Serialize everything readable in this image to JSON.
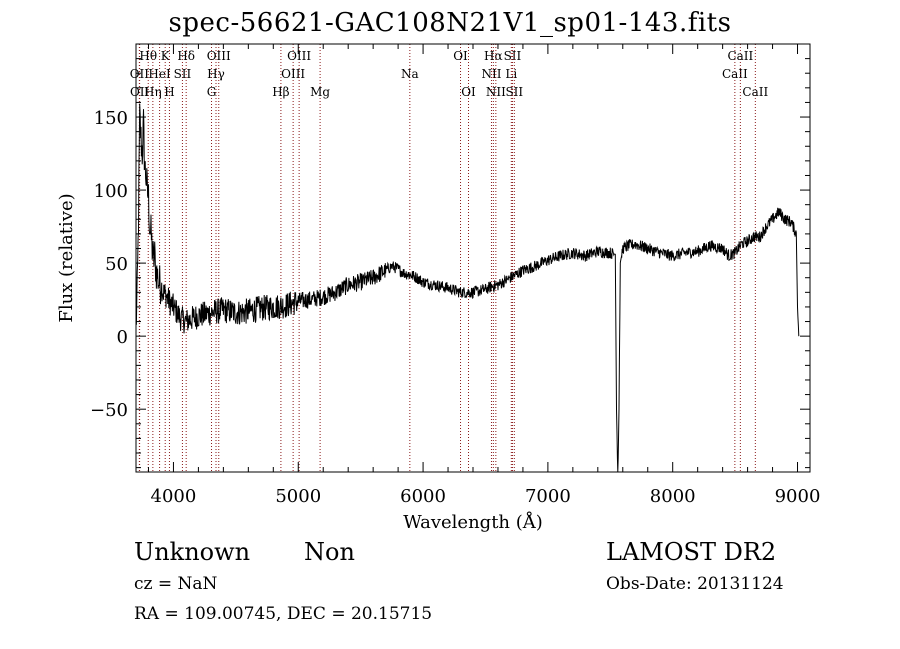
{
  "header": {
    "title": "spec-56621-GAC108N21V1_sp01-143.fits"
  },
  "info": {
    "object_class": "Unknown",
    "object_subclass": "Non",
    "survey": "LAMOST DR2",
    "cz": "cz = NaN",
    "obs_date": "Obs-Date: 20131124",
    "radec": "RA = 109.00745, DEC =  20.15715"
  },
  "chart_data": {
    "type": "line",
    "title": "spec-56621-GAC108N21V1_sp01-143.fits",
    "xlabel": "Wavelength (Å)",
    "ylabel": "Flux (relative)",
    "xlim": [
      3700,
      9100
    ],
    "ylim": [
      -93,
      200
    ],
    "xticks": [
      4000,
      5000,
      6000,
      7000,
      8000,
      9000
    ],
    "yticks": [
      -50,
      0,
      50,
      100,
      150
    ],
    "grid": false,
    "line_color": "#000000",
    "marker_color": "#8b1a1a",
    "series": [
      {
        "x": [
          3700,
          3710,
          3720,
          3730,
          3740,
          3750,
          3760,
          3770,
          3780,
          3790,
          3800,
          3810,
          3820,
          3830,
          3840,
          3850,
          3860,
          3870,
          3880,
          3890,
          3900,
          3920,
          3940,
          3960,
          3980,
          4000,
          4030,
          4060,
          4100,
          4150,
          4200,
          4250,
          4300,
          4350,
          4400,
          4500,
          4600,
          4700,
          4800,
          4900,
          5000,
          5100,
          5200,
          5300,
          5400,
          5500,
          5600,
          5700,
          5750,
          5800,
          5850,
          5900,
          5950,
          6000,
          6100,
          6200,
          6300,
          6400,
          6500,
          6550,
          6600,
          6700,
          6800,
          6900,
          7000,
          7100,
          7200,
          7300,
          7400,
          7500,
          7540,
          7550,
          7560,
          7570,
          7580,
          7600,
          7650,
          7700,
          7800,
          7900,
          8000,
          8100,
          8200,
          8300,
          8400,
          8450,
          8500,
          8550,
          8600,
          8650,
          8700,
          8750,
          8800,
          8850,
          8900,
          8950,
          8990,
          9000,
          9010
        ],
        "y": [
          5,
          30,
          80,
          150,
          135,
          125,
          145,
          115,
          110,
          100,
          95,
          75,
          70,
          60,
          52,
          55,
          45,
          42,
          38,
          36,
          35,
          30,
          28,
          25,
          22,
          20,
          16,
          12,
          10,
          12,
          14,
          15,
          16,
          17,
          18,
          16,
          17,
          19,
          20,
          21,
          24,
          25,
          27,
          30,
          35,
          37,
          40,
          45,
          48,
          46,
          43,
          42,
          40,
          37,
          35,
          33,
          30,
          30,
          32,
          34,
          35,
          40,
          45,
          48,
          52,
          55,
          57,
          55,
          58,
          57,
          56,
          -50,
          -100,
          -50,
          50,
          60,
          62,
          63,
          60,
          57,
          55,
          57,
          58,
          62,
          60,
          55,
          57,
          63,
          65,
          68,
          68,
          75,
          80,
          85,
          80,
          78,
          70,
          20,
          0
        ]
      }
    ],
    "line_markers": [
      {
        "label": "OII",
        "x": 3727,
        "row": 2
      },
      {
        "label": "OII",
        "x": 3729,
        "row": 3
      },
      {
        "label": "Hθ",
        "x": 3798,
        "row": 1
      },
      {
        "label": "Hη",
        "x": 3835,
        "row": 3
      },
      {
        "label": "HeI",
        "x": 3889,
        "row": 2
      },
      {
        "label": "K",
        "x": 3934,
        "row": 1
      },
      {
        "label": "H",
        "x": 3968,
        "row": 3
      },
      {
        "label": "SII",
        "x": 4072,
        "row": 2
      },
      {
        "label": "Hδ",
        "x": 4102,
        "row": 1
      },
      {
        "label": "G",
        "x": 4305,
        "row": 3
      },
      {
        "label": "Hγ",
        "x": 4341,
        "row": 2
      },
      {
        "label": "OIII",
        "x": 4363,
        "row": 1
      },
      {
        "label": "Hβ",
        "x": 4861,
        "row": 3
      },
      {
        "label": "OIII",
        "x": 4959,
        "row": 2
      },
      {
        "label": "OIII",
        "x": 5007,
        "row": 1
      },
      {
        "label": "Mg",
        "x": 5175,
        "row": 3
      },
      {
        "label": "Na",
        "x": 5894,
        "row": 2
      },
      {
        "label": "OI",
        "x": 6300,
        "row": 1
      },
      {
        "label": "OI",
        "x": 6364,
        "row": 3
      },
      {
        "label": "NII",
        "x": 6548,
        "row": 2
      },
      {
        "label": "Hα",
        "x": 6563,
        "row": 1
      },
      {
        "label": "NII",
        "x": 6583,
        "row": 3
      },
      {
        "label": "Li",
        "x": 6707,
        "row": 2
      },
      {
        "label": "SII",
        "x": 6716,
        "row": 1
      },
      {
        "label": "SII",
        "x": 6731,
        "row": 3
      },
      {
        "label": "CaII",
        "x": 8498,
        "row": 2
      },
      {
        "label": "CaII",
        "x": 8542,
        "row": 1
      },
      {
        "label": "CaII",
        "x": 8662,
        "row": 3
      }
    ]
  }
}
